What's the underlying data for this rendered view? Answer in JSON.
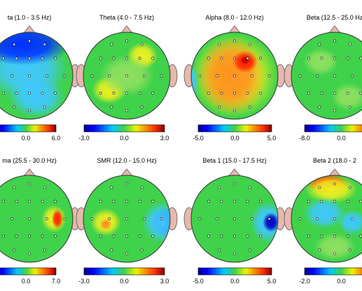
{
  "panels": [
    {
      "title": "ta (1.0 - 3.5 Hz)",
      "scale_labels": [
        "0.0",
        "6.0"
      ]
    },
    {
      "title": "Theta (4.0 - 7.5 Hz)",
      "scale_labels": [
        "-3.0",
        "0.0",
        "3.0"
      ]
    },
    {
      "title": "Alpha (8.0 - 12.0 Hz)",
      "scale_labels": [
        "-5.0",
        "0.0",
        "5.0"
      ]
    },
    {
      "title": "Beta (12.5 - 25.0 Hz",
      "scale_labels": [
        "-8.0",
        "0.0"
      ]
    },
    {
      "title": "ma (25.5 - 30.0 Hz)",
      "scale_labels": [
        "0.0",
        "7.0"
      ]
    },
    {
      "title": "SMR (12.0 - 15.0 Hz)",
      "scale_labels": [
        "-3.0",
        "0.0",
        "3.0"
      ]
    },
    {
      "title": "Beta 1 (15.0 - 17.5 Hz)",
      "scale_labels": [
        "-5.0",
        "0.0",
        "5.0"
      ]
    },
    {
      "title": "Beta 2 (18.0 - 2",
      "scale_labels": [
        "-2.0",
        "0.0"
      ]
    }
  ]
}
